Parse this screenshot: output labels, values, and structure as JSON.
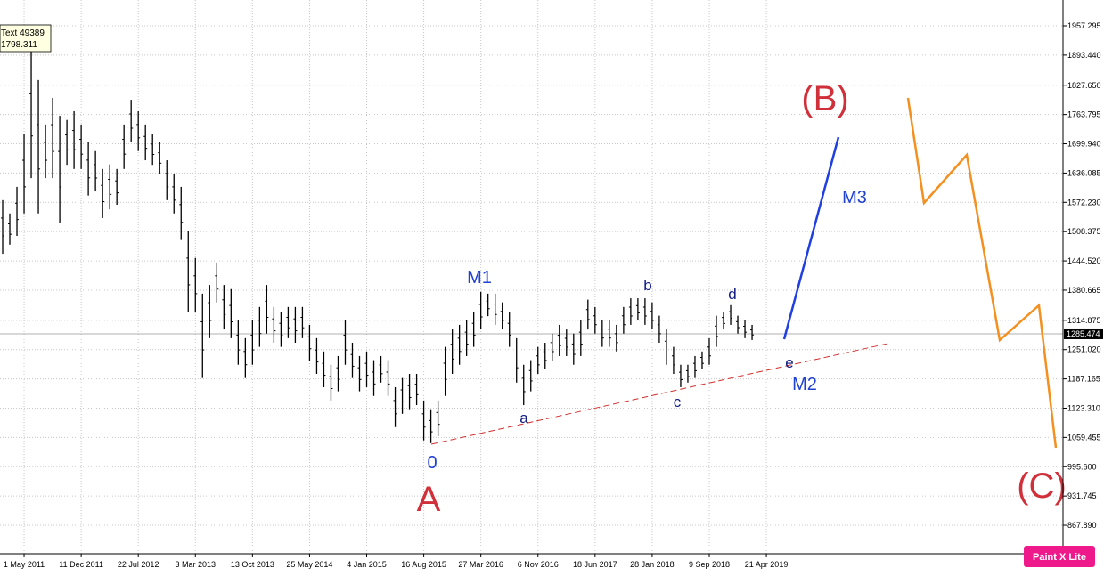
{
  "chart_data": {
    "type": "ohlc",
    "categories": [
      null,
      null,
      null,
      "1 May 2011",
      null,
      null,
      null,
      null,
      null,
      null,
      null,
      "11 Dec 2011",
      null,
      null,
      null,
      null,
      null,
      null,
      null,
      "22 Jul 2012",
      null,
      null,
      null,
      null,
      null,
      null,
      null,
      "3 Mar 2013",
      null,
      null,
      null,
      null,
      null,
      null,
      null,
      "13 Oct 2013",
      null,
      null,
      null,
      null,
      null,
      null,
      null,
      "25 May 2014",
      null,
      null,
      null,
      null,
      null,
      null,
      null,
      "4 Jan 2015",
      null,
      null,
      null,
      null,
      null,
      null,
      null,
      "16 Aug 2015",
      null,
      null,
      null,
      null,
      null,
      null,
      null,
      "27 Mar 2016",
      null,
      null,
      null,
      null,
      null,
      null,
      null,
      "6 Nov 2016",
      null,
      null,
      null,
      null,
      null,
      null,
      null,
      "18 Jun 2017",
      null,
      null,
      null,
      null,
      null,
      null,
      null,
      "28 Jan 2018",
      null,
      null,
      null,
      null,
      null,
      null,
      null,
      "9 Sep 2018",
      null,
      null,
      null,
      null,
      null,
      null,
      null,
      "21 Apr 2019"
    ],
    "high": [
      1577,
      1548,
      1606,
      1722,
      1901,
      1839,
      1742,
      1800,
      1761,
      1752,
      1771,
      1742,
      1703,
      1684,
      1645,
      1655,
      1645,
      1742,
      1796,
      1771,
      1742,
      1722,
      1703,
      1664,
      1635,
      1606,
      1509,
      1451,
      1373,
      1392,
      1441,
      1392,
      1383,
      1315,
      1276,
      1315,
      1344,
      1392,
      1344,
      1334,
      1344,
      1344,
      1344,
      1305,
      1276,
      1247,
      1218,
      1237,
      1315,
      1266,
      1237,
      1247,
      1228,
      1237,
      1228,
      1169,
      1189,
      1198,
      1198,
      1140,
      1121,
      1140,
      1257,
      1295,
      1305,
      1315,
      1334,
      1377,
      1373,
      1373,
      1354,
      1334,
      1276,
      1218,
      1228,
      1257,
      1266,
      1286,
      1305,
      1295,
      1286,
      1315,
      1360,
      1344,
      1315,
      1315,
      1305,
      1344,
      1363,
      1363,
      1363,
      1354,
      1325,
      1295,
      1257,
      1218,
      1218,
      1237,
      1247,
      1276,
      1325,
      1334,
      1348,
      1325,
      1315,
      1305,
      null,
      null
    ],
    "low": [
      1460,
      1480,
      1499,
      1548,
      1625,
      1548,
      1625,
      1625,
      1528,
      1654,
      1645,
      1645,
      1587,
      1596,
      1538,
      1557,
      1567,
      1645,
      1703,
      1684,
      1664,
      1654,
      1635,
      1577,
      1548,
      1490,
      1334,
      1334,
      1189,
      1276,
      1354,
      1295,
      1276,
      1218,
      1189,
      1218,
      1257,
      1286,
      1266,
      1257,
      1276,
      1266,
      1276,
      1227,
      1198,
      1169,
      1140,
      1160,
      1218,
      1189,
      1160,
      1169,
      1150,
      1179,
      1150,
      1082,
      1111,
      1121,
      1130,
      1053,
      1047,
      1062,
      1150,
      1198,
      1218,
      1237,
      1257,
      1295,
      1324,
      1305,
      1295,
      1257,
      1179,
      1130,
      1160,
      1198,
      1208,
      1227,
      1237,
      1237,
      1218,
      1237,
      1295,
      1286,
      1257,
      1257,
      1247,
      1286,
      1305,
      1315,
      1305,
      1295,
      1266,
      1218,
      1198,
      1169,
      1179,
      1189,
      1208,
      1218,
      1257,
      1295,
      1305,
      1286,
      1276,
      1272,
      null,
      null
    ],
    "color": "#000000",
    "ylim": [
      805.8,
      2013.6
    ],
    "yticks": [
      {
        "value": 867.89,
        "label": "867.890"
      },
      931.745,
      {
        "value": 995.6,
        "label": "995.600"
      },
      1059.455,
      {
        "value": 1123.31,
        "label": "1123.310"
      },
      1187.165,
      {
        "value": 1251.02,
        "label": "1251.020"
      },
      1314.875,
      1380.665,
      {
        "value": 1444.52,
        "label": "1444.520"
      },
      1508.375,
      {
        "value": 1572.23,
        "label": "1572.230"
      },
      1636.085,
      {
        "value": 1699.94,
        "label": "1699.940"
      },
      1763.795,
      {
        "value": 1827.65,
        "label": "1827.650"
      },
      {
        "value": 1893.44,
        "label": "1893.440"
      },
      1957.295
    ],
    "grid": true,
    "current_price": 1285.474,
    "tooltip": {
      "title": "Text 49389",
      "value": 1798.311
    },
    "annotations": [
      "M1",
      "a",
      "b",
      "c",
      "d",
      "e",
      "M2",
      "M3",
      "0",
      "A",
      "(B)",
      "(C)"
    ],
    "badge": "Paint X Lite"
  }
}
